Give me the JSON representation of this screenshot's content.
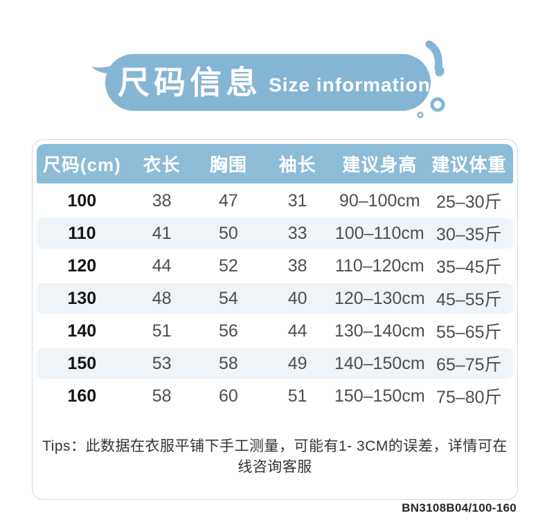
{
  "banner": {
    "title_zh": "尺码信息",
    "title_en": "Size information"
  },
  "size_table": {
    "headers": [
      "尺码(cm)",
      "衣长",
      "胸围",
      "袖长",
      "建议身高",
      "建议体重"
    ],
    "rows": [
      [
        "100",
        "38",
        "47",
        "31",
        "90–100cm",
        "25–30斤"
      ],
      [
        "110",
        "41",
        "50",
        "33",
        "100–110cm",
        "30–35斤"
      ],
      [
        "120",
        "44",
        "52",
        "38",
        "110–120cm",
        "35–45斤"
      ],
      [
        "130",
        "48",
        "54",
        "40",
        "120–130cm",
        "45–55斤"
      ],
      [
        "140",
        "51",
        "56",
        "44",
        "130–140cm",
        "55–65斤"
      ],
      [
        "150",
        "53",
        "58",
        "49",
        "140–150cm",
        "65–75斤"
      ],
      [
        "160",
        "58",
        "60",
        "51",
        "150–150cm",
        "75–80斤"
      ]
    ]
  },
  "tips": {
    "text": "Tips：此数据在衣服平铺下手工测量，可能有1- 3CM的误差，详情可在线咨询客服"
  },
  "footer": {
    "product_code": "BN3108B04/100-160"
  },
  "colors": {
    "banner_blue": "#84b5d4",
    "header_blue": "#8cbcd8",
    "row_stripe": "#eff4f9",
    "table_border": "#c9dbe1",
    "data_text": "#4d4d4d"
  }
}
